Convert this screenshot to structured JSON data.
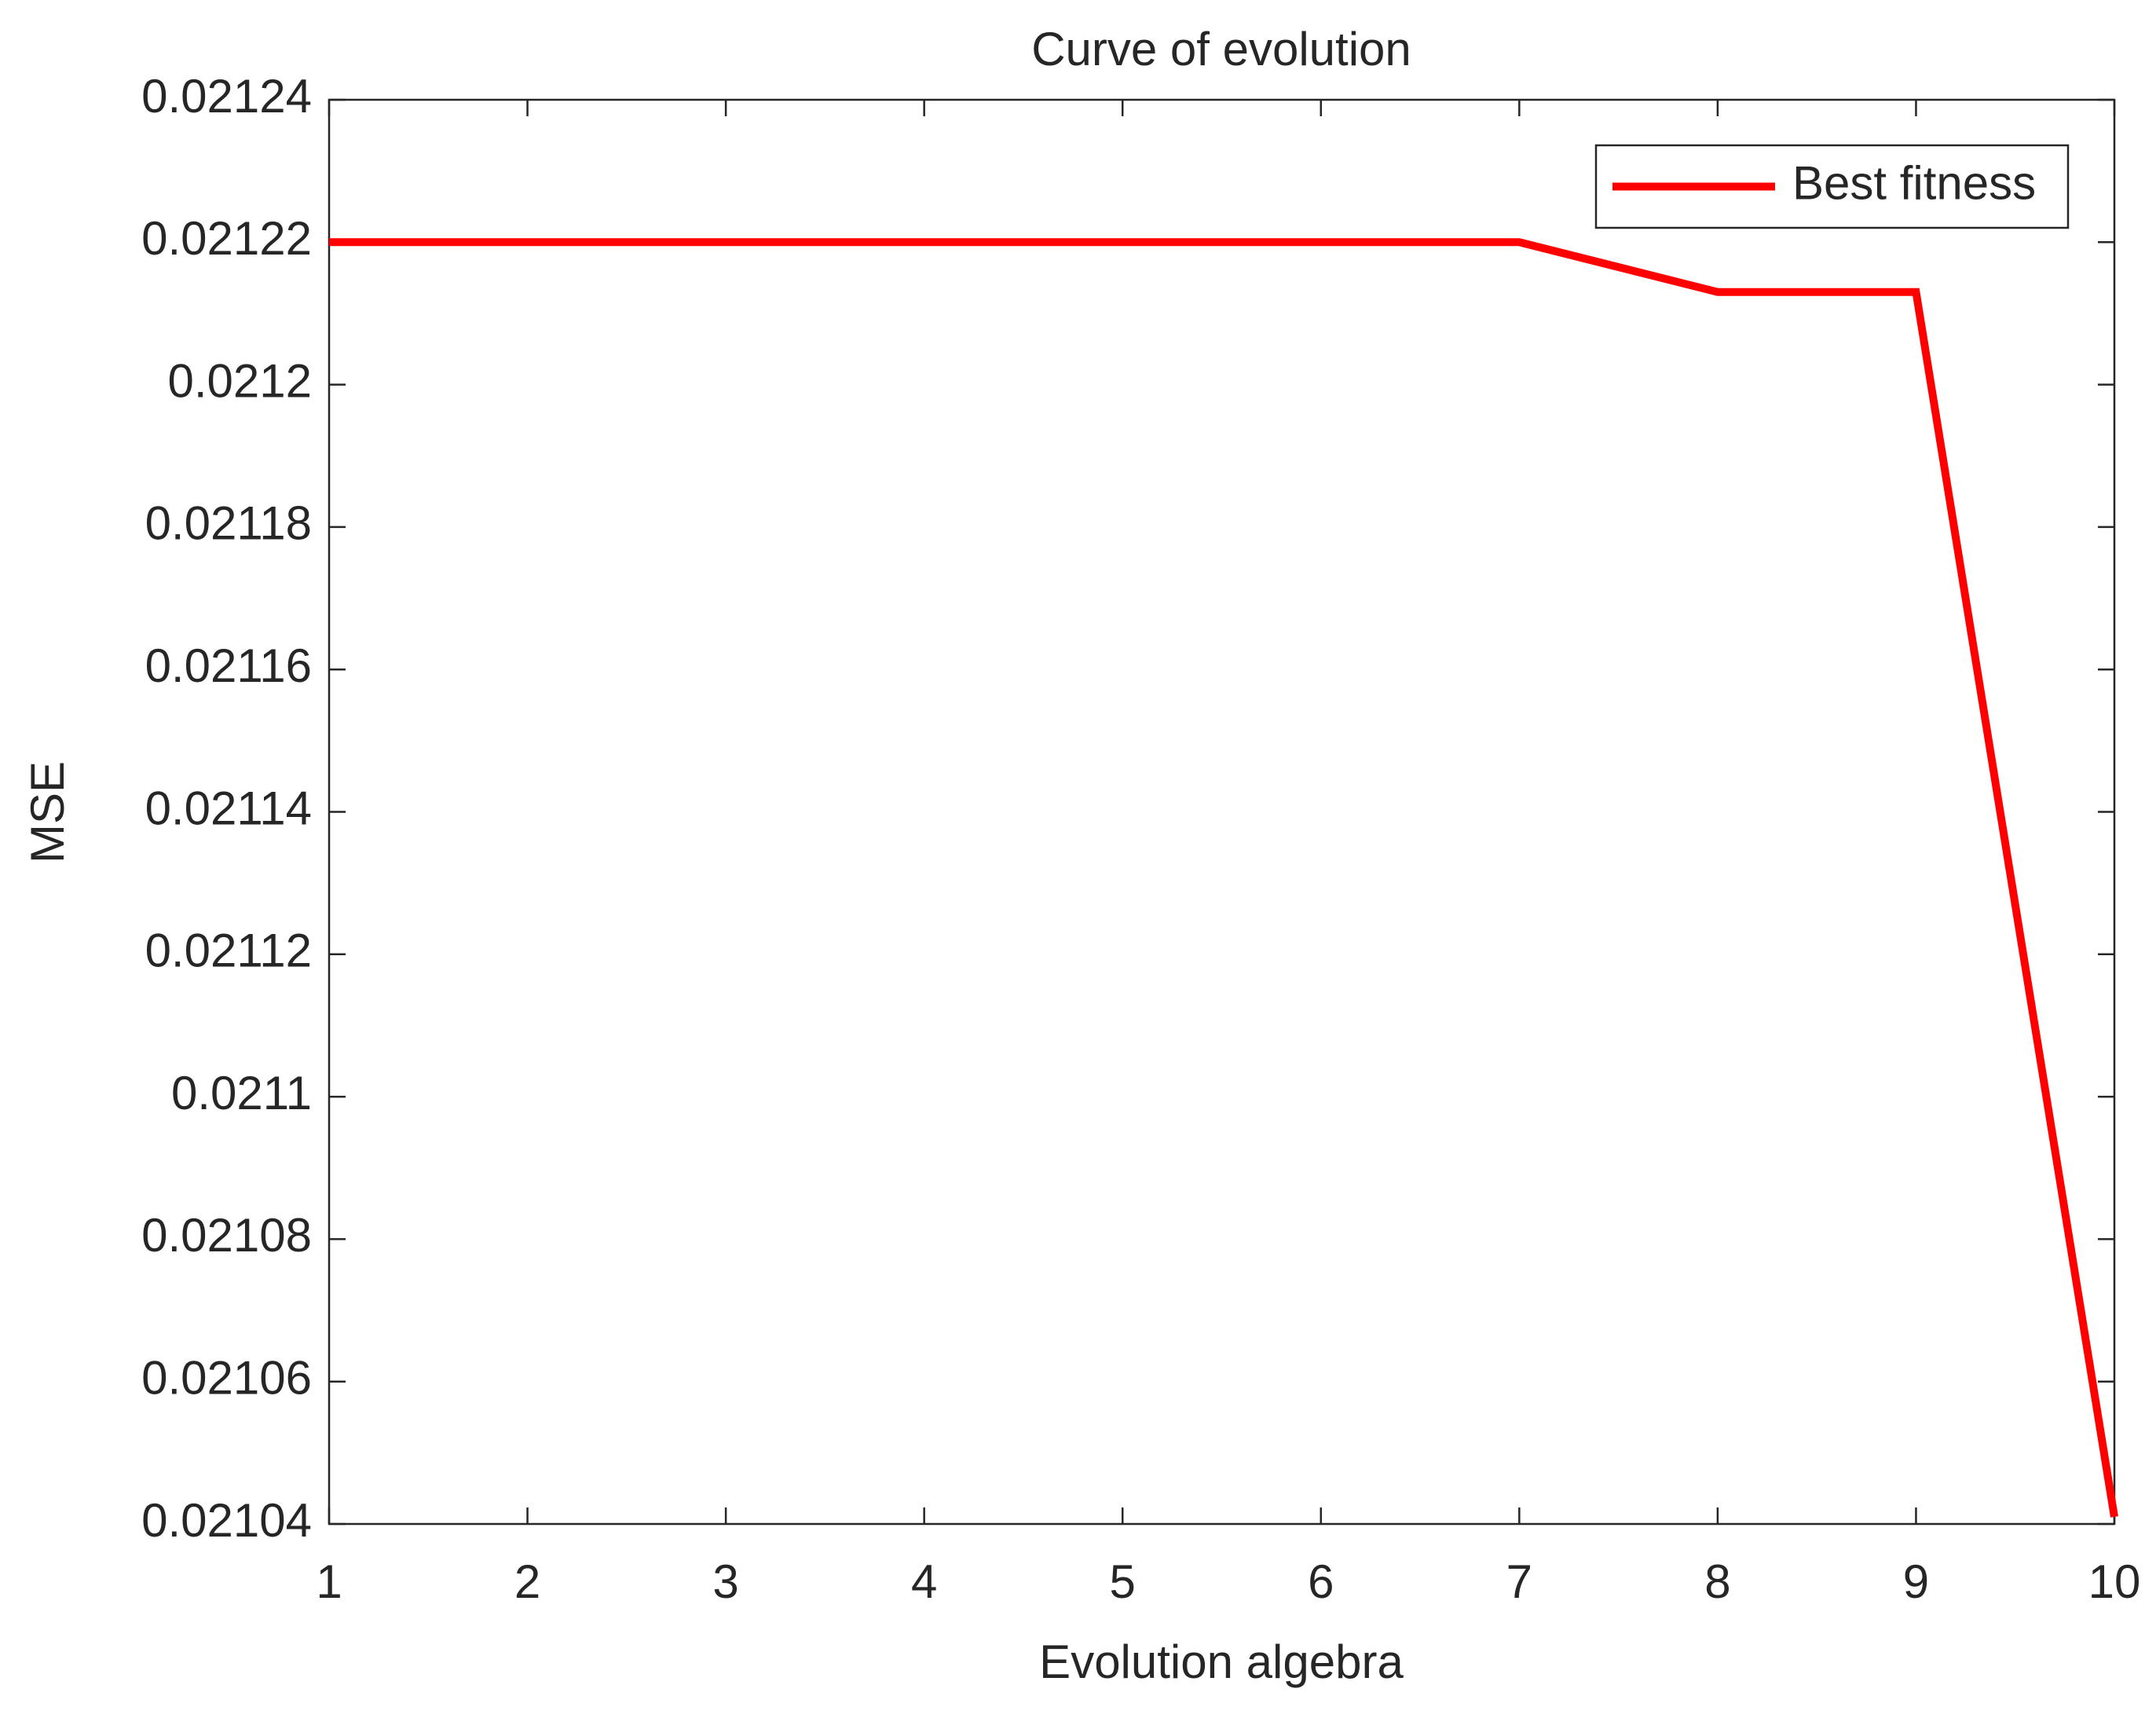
{
  "chart_data": {
    "type": "line",
    "title": "Curve of evolution",
    "x_label": "Evolution algebra",
    "y_label": "MSE",
    "x": [
      1,
      2,
      3,
      4,
      5,
      6,
      7,
      8,
      9,
      10
    ],
    "series": [
      {
        "name": "Best fitness",
        "color": "#ff0000",
        "values": [
          0.02122,
          0.02122,
          0.02122,
          0.02122,
          0.02122,
          0.02122,
          0.02122,
          0.021213,
          0.021213,
          0.021041
        ]
      }
    ],
    "xlim": [
      1,
      10
    ],
    "xticks": [
      1,
      2,
      3,
      4,
      5,
      6,
      7,
      8,
      9,
      10
    ],
    "ylim": [
      0.02104,
      0.02124
    ],
    "yticks": [
      0.02104,
      0.02106,
      0.02108,
      0.0211,
      0.02112,
      0.02114,
      0.02116,
      0.02118,
      0.0212,
      0.02122,
      0.02124
    ],
    "grid": false,
    "legend": "northeast"
  }
}
